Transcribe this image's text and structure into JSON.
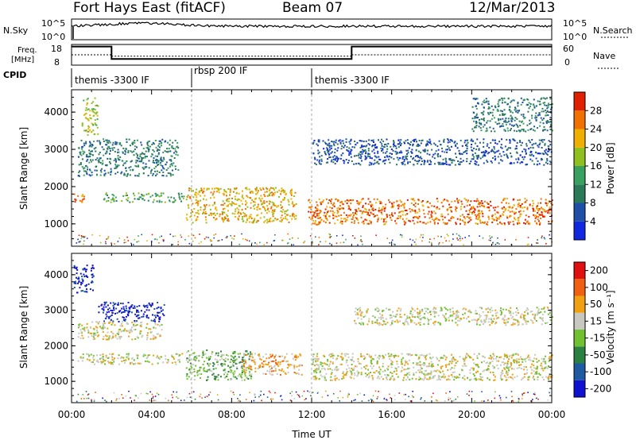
{
  "header": {
    "station": "Fort Hays East (fitACF)",
    "beam": "Beam 07",
    "date": "12/Mar/2013"
  },
  "top_panels": {
    "nsky_label": "N.Sky",
    "nsky_tick_hi": "10^5",
    "nsky_tick_lo": "10^0",
    "nsearch_label": "N.Search",
    "nsearch_tick_hi": "10^5",
    "nsearch_tick_lo": "10^0",
    "freq_label_1": "Freq.",
    "freq_label_2": "[MHz]",
    "freq_tick_hi": "18",
    "freq_tick_lo": "8",
    "nave_label": "Nave",
    "nave_tick_hi": "60",
    "nave_tick_lo": "0",
    "cpid_label": "CPID",
    "cpid_segments": [
      "themis -3300 IF",
      "rbsp 200 IF",
      "themis -3300 IF"
    ]
  },
  "chart_data": [
    {
      "type": "heatmap",
      "name": "power",
      "ylabel": "Slant Range [km]",
      "yticks": [
        1000,
        2000,
        3000,
        4000
      ],
      "ylim": [
        400,
        4600
      ],
      "xlim": [
        0,
        24
      ],
      "colorbar_label": "Power [dB]",
      "colorbar_ticks": [
        "4",
        "8",
        "12",
        "16",
        "20",
        "24",
        "28"
      ],
      "colors": [
        "#1028e0",
        "#1e50a8",
        "#2a7a5a",
        "#3aa060",
        "#90c020",
        "#f0b000",
        "#f07000",
        "#e02000"
      ],
      "echo_regions": [
        {
          "t": [
            0.0,
            0.6
          ],
          "r": [
            1550,
            1850
          ],
          "level": 6
        },
        {
          "t": [
            0.5,
            1.3
          ],
          "r": [
            3400,
            4400
          ],
          "level": 4
        },
        {
          "t": [
            0.3,
            5.3
          ],
          "r": [
            2300,
            3300
          ],
          "level": 2
        },
        {
          "t": [
            1.5,
            5.6
          ],
          "r": [
            1600,
            1850
          ],
          "level": 3
        },
        {
          "t": [
            5.7,
            11.2
          ],
          "r": [
            1050,
            2000
          ],
          "level": 5
        },
        {
          "t": [
            11.8,
            24.0
          ],
          "r": [
            1000,
            1700
          ],
          "level": 6
        },
        {
          "t": [
            12.0,
            24.0
          ],
          "r": [
            2600,
            3300
          ],
          "level": 1
        },
        {
          "t": [
            20.0,
            24.0
          ],
          "r": [
            3500,
            4400
          ],
          "level": 2
        }
      ]
    },
    {
      "type": "heatmap",
      "name": "velocity",
      "ylabel": "Slant Range [km]",
      "xlabel": "Time UT",
      "xticks": [
        "00:00",
        "04:00",
        "08:00",
        "12:00",
        "16:00",
        "20:00",
        "00:00"
      ],
      "yticks": [
        1000,
        2000,
        3000,
        4000
      ],
      "ylim": [
        400,
        4600
      ],
      "xlim": [
        0,
        24
      ],
      "colorbar_label": "Velocity [m s⁻¹]",
      "colorbar_ticks": [
        "200",
        "100",
        "50",
        "15",
        "-15",
        "-50",
        "-100",
        "-200"
      ],
      "colors": [
        "#1010d0",
        "#1e5aa0",
        "#2a8040",
        "#70c030",
        "#c8c8c0",
        "#f0a010",
        "#f06010",
        "#e01010"
      ],
      "echo_regions": [
        {
          "t": [
            0.1,
            1.1
          ],
          "r": [
            3500,
            4300
          ],
          "level": 0
        },
        {
          "t": [
            1.3,
            4.6
          ],
          "r": [
            2700,
            3250
          ],
          "level": 0
        },
        {
          "t": [
            0.3,
            4.5
          ],
          "r": [
            2200,
            2700
          ],
          "level": 4
        },
        {
          "t": [
            0.3,
            5.5
          ],
          "r": [
            1500,
            1800
          ],
          "level": 4
        },
        {
          "t": [
            5.7,
            9.0
          ],
          "r": [
            1050,
            1900
          ],
          "level": 3
        },
        {
          "t": [
            8.5,
            11.5
          ],
          "r": [
            1200,
            1800
          ],
          "level": 5
        },
        {
          "t": [
            12.0,
            24.0
          ],
          "r": [
            1050,
            1800
          ],
          "level": 4
        },
        {
          "t": [
            14.0,
            24.0
          ],
          "r": [
            2600,
            3100
          ],
          "level": 4
        }
      ]
    }
  ]
}
